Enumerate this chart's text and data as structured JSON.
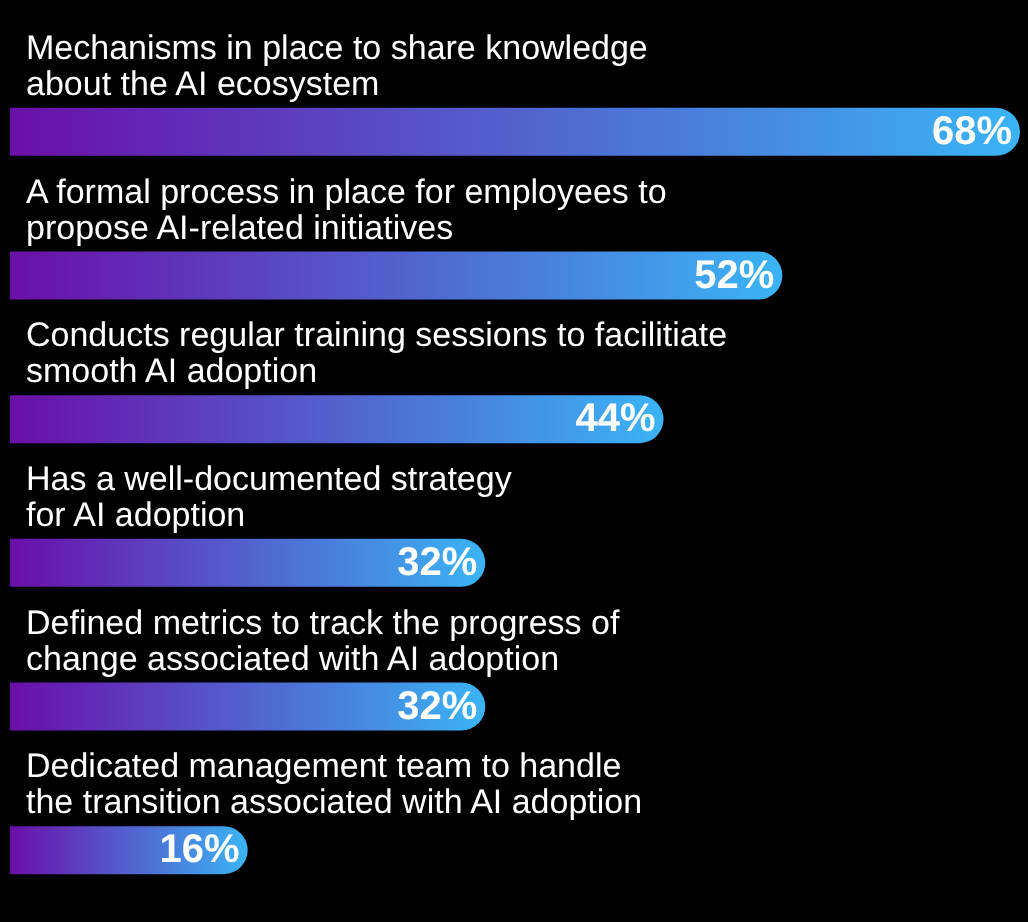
{
  "chart_data": {
    "type": "bar",
    "orientation": "horizontal",
    "categories": [
      "Mechanisms in place to share knowledge\nabout the AI ecosystem",
      "A formal process in place for employees to\npropose AI-related initiatives",
      "Conducts regular training sessions to facilitiate\nsmooth AI adoption",
      "Has a well-documented strategy\nfor AI adoption",
      "Defined metrics to track the progress of\nchange associated with AI adoption",
      "Dedicated management team to handle\nthe transition associated with AI adoption"
    ],
    "values": [
      68,
      52,
      44,
      32,
      32,
      16
    ],
    "value_labels": [
      "68%",
      "52%",
      "44%",
      "32%",
      "32%",
      "16%"
    ],
    "color": "#3ab4f5"
  }
}
